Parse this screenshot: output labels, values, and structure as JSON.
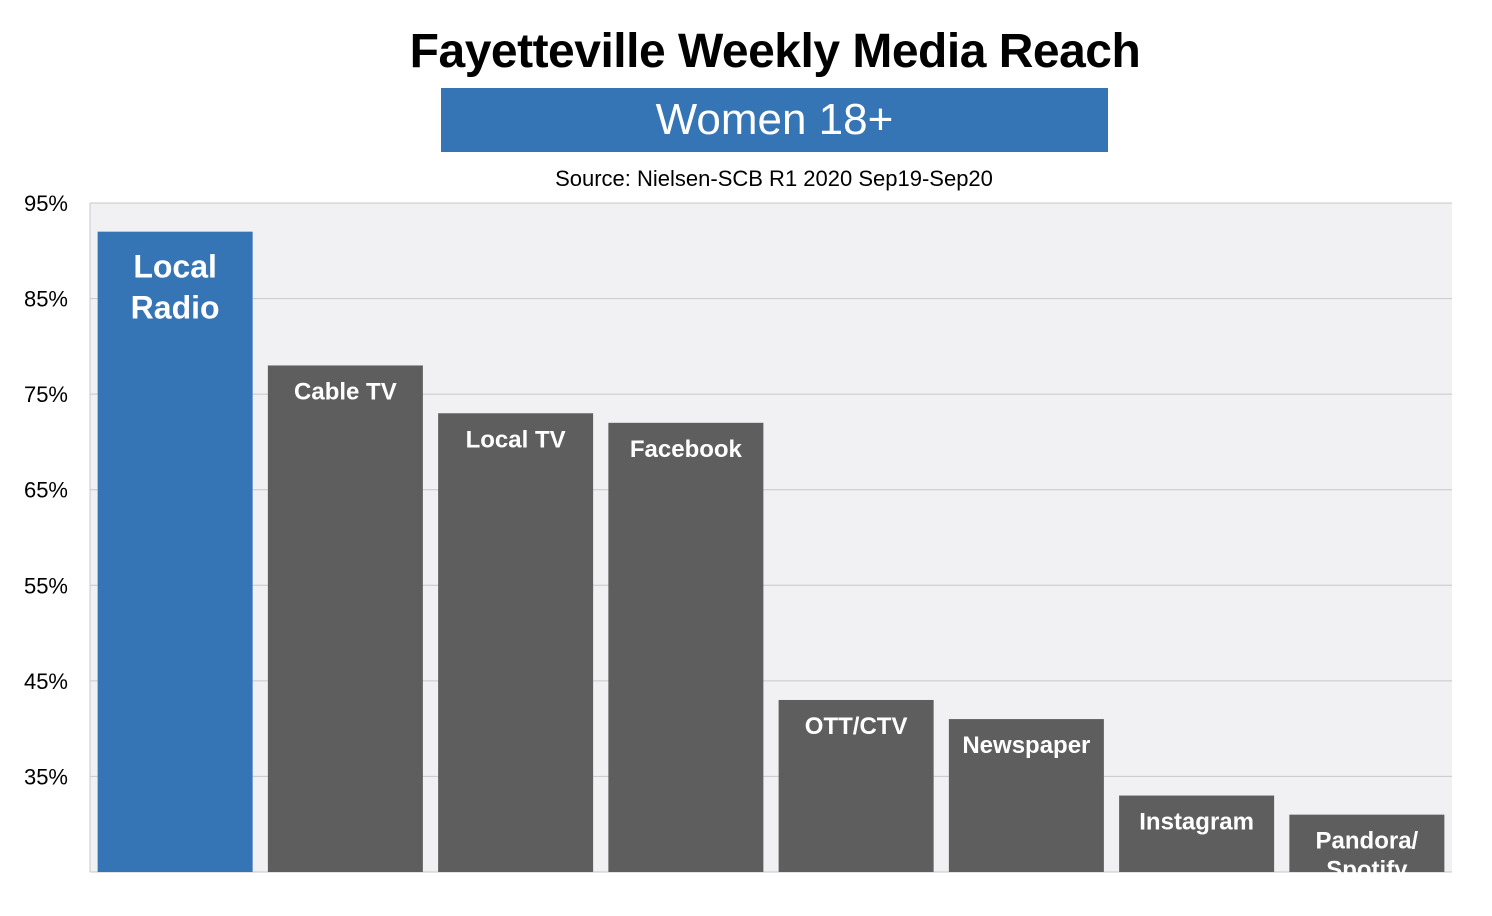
{
  "colors": {
    "highlight": "#3574b5",
    "bar": "#5e5e5e",
    "plot_bg": "#f1f1f3",
    "grid": "#c8c8c8"
  },
  "chart_data": {
    "type": "bar",
    "title": "Fayetteville Weekly Media Reach",
    "subtitle": "Women 18+",
    "source": "Source: Nielsen-SCB R1 2020 Sep19-Sep20",
    "ylim": [
      25,
      95
    ],
    "yticks": [
      "95%",
      "85%",
      "75%",
      "65%",
      "55%",
      "45%",
      "35%"
    ],
    "ytick_values": [
      95,
      85,
      75,
      65,
      55,
      45,
      35
    ],
    "grid": true,
    "categories": [
      [
        "Local",
        "Radio"
      ],
      [
        "Cable TV"
      ],
      [
        "Local TV"
      ],
      [
        "Facebook"
      ],
      [
        "OTT/CTV"
      ],
      [
        "Newspaper"
      ],
      [
        "Instagram"
      ],
      [
        "Pandora/",
        "Spotify"
      ]
    ],
    "values": [
      92,
      78,
      73,
      72,
      43,
      41,
      33,
      31
    ],
    "highlight_index": 0
  }
}
